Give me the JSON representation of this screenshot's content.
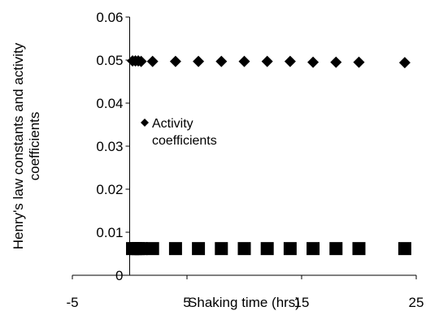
{
  "chart_data": {
    "type": "scatter",
    "title": "",
    "xlabel": "Shaking time (hrs)",
    "ylabel_lines": [
      "Henry's law constants and activity",
      "coefficients"
    ],
    "xlim": [
      -5,
      25
    ],
    "ylim": [
      0,
      0.06
    ],
    "x_ticks": [
      -5,
      5,
      15,
      25
    ],
    "x_tick_labels": [
      "-5",
      "5",
      "15",
      "25"
    ],
    "y_ticks": [
      0,
      0.01,
      0.02,
      0.03,
      0.04,
      0.05,
      0.06
    ],
    "y_tick_labels": [
      "0",
      "0.01",
      "0.02",
      "0.03",
      "0.04",
      "0.05",
      "0.06"
    ],
    "grid": false,
    "legend_placement": "left",
    "legend_lines": [
      "Activity",
      "coefficients"
    ],
    "series": [
      {
        "name": "Activity coefficients",
        "marker": "diamond",
        "color": "#000000",
        "x": [
          0.25,
          0.5,
          0.75,
          1,
          2,
          4,
          6,
          8,
          10,
          12,
          14,
          16,
          18,
          20,
          24
        ],
        "y": [
          0.0498,
          0.0498,
          0.0498,
          0.0497,
          0.0497,
          0.0497,
          0.0497,
          0.0497,
          0.0497,
          0.0497,
          0.0497,
          0.0495,
          0.0495,
          0.0495,
          0.0494
        ]
      },
      {
        "marker": "square",
        "color": "#000000",
        "x": [
          0.25,
          0.5,
          0.75,
          1,
          2,
          4,
          6,
          8,
          10,
          12,
          14,
          16,
          18,
          20,
          24
        ],
        "y": [
          0.0062,
          0.0062,
          0.0062,
          0.0062,
          0.0062,
          0.0062,
          0.0062,
          0.0062,
          0.0062,
          0.0062,
          0.0062,
          0.0062,
          0.0062,
          0.0062,
          0.0062
        ]
      }
    ]
  }
}
